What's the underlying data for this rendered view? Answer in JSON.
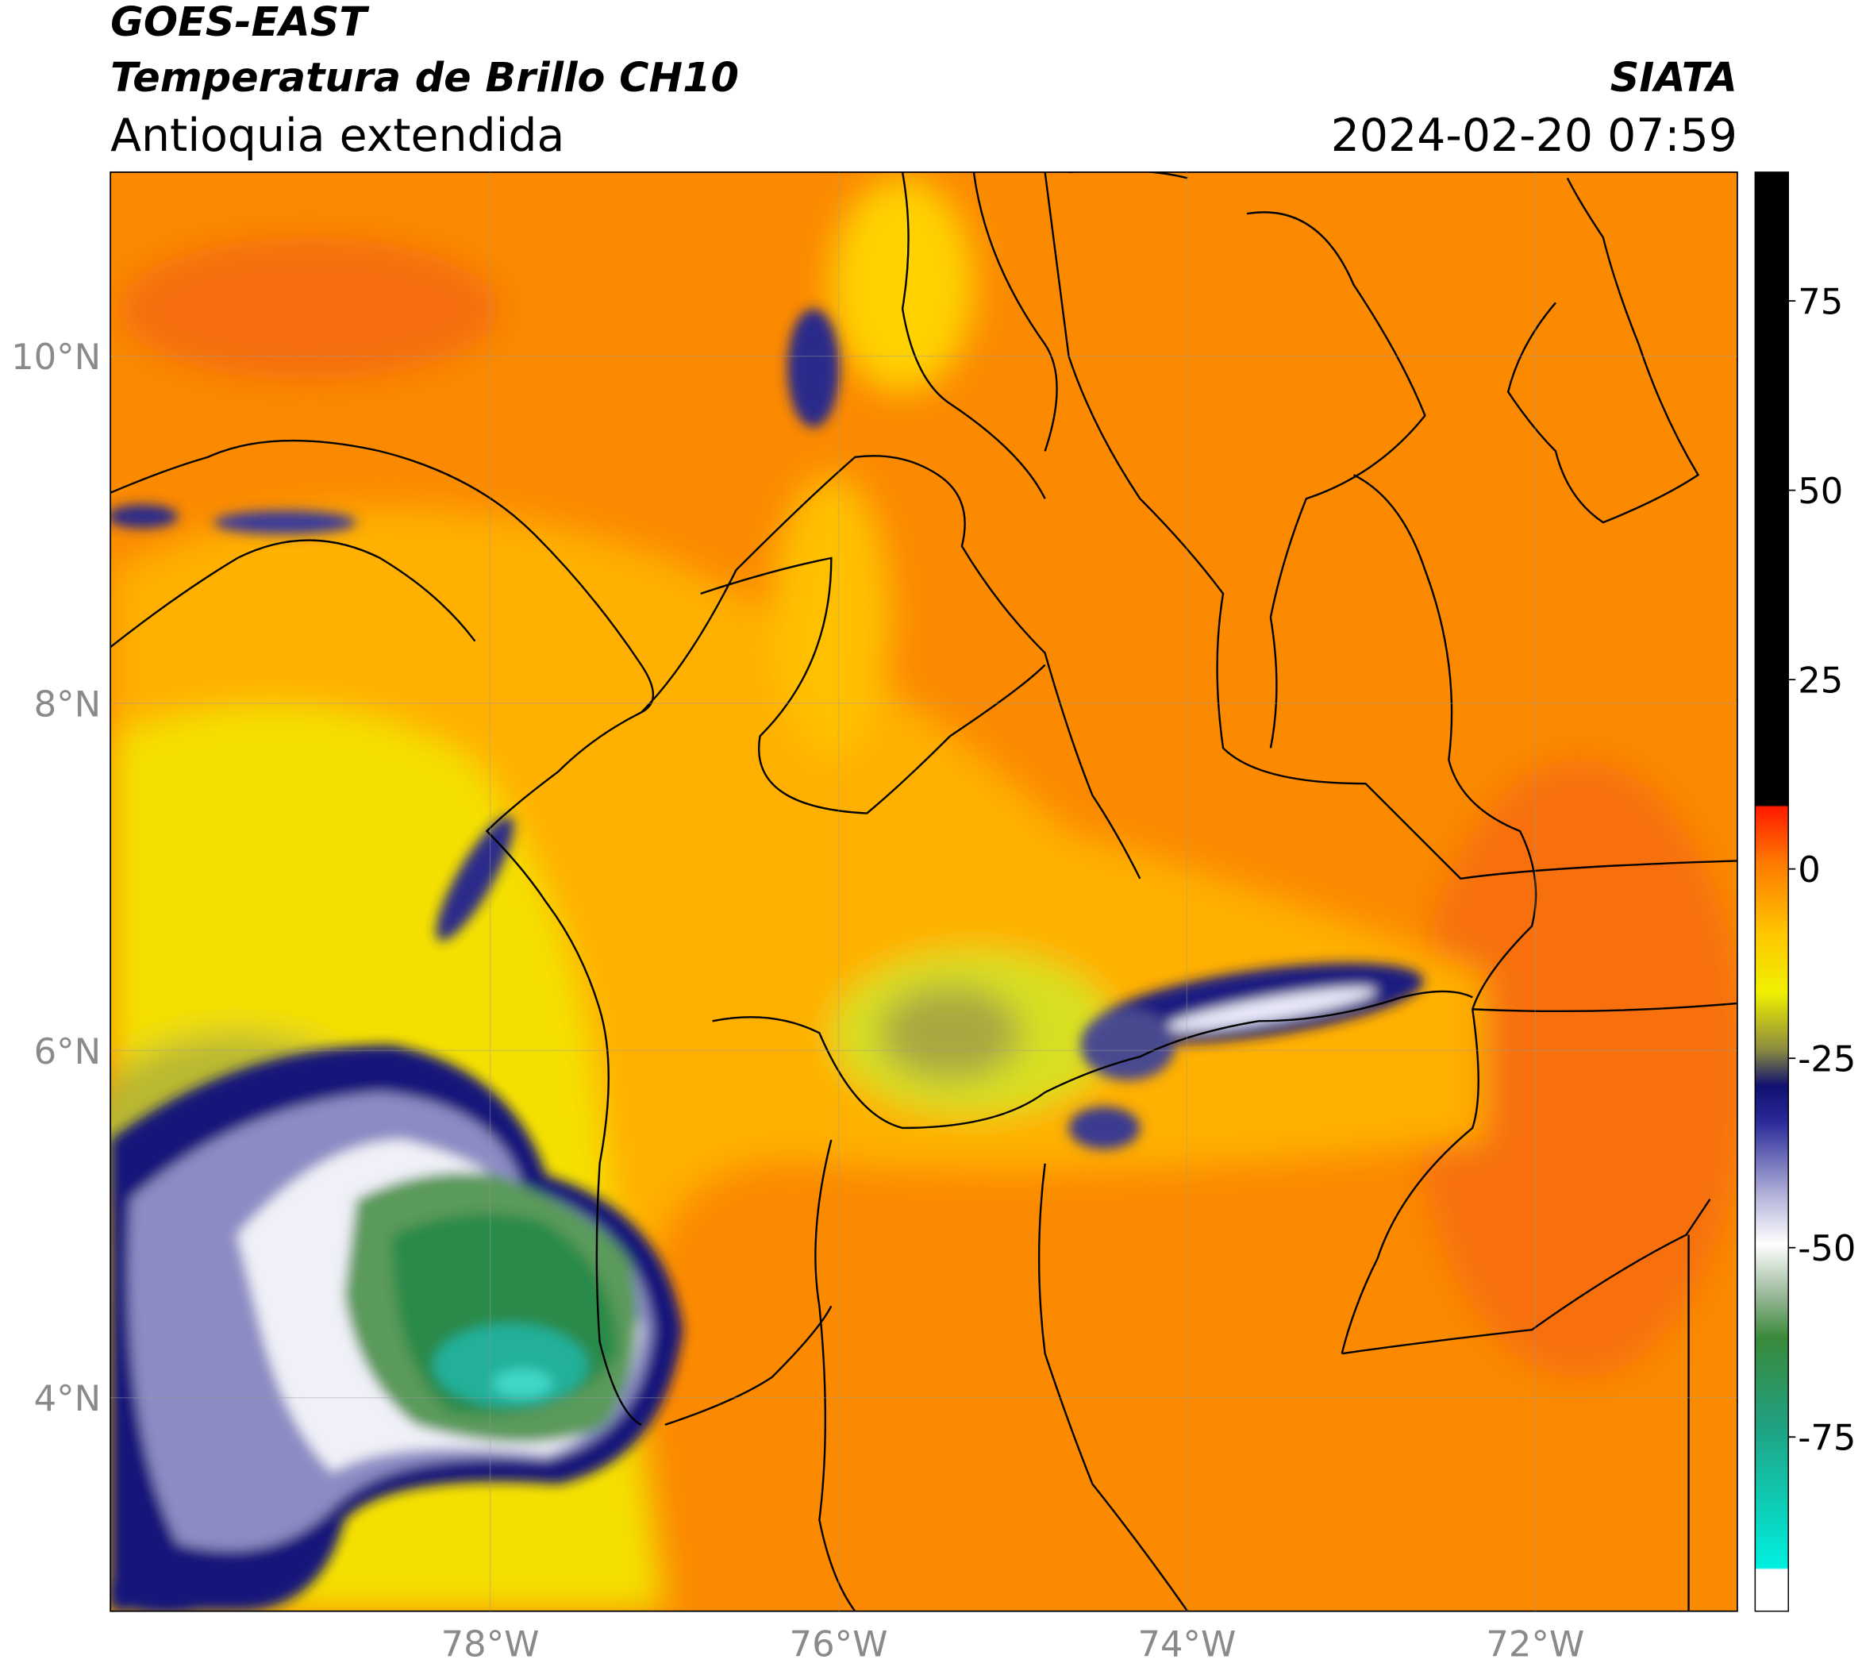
{
  "header": {
    "title": "GOES-EAST",
    "subtitle": "Temperatura de Brillo CH10",
    "region": "Antioquia extendida",
    "source": "SIATA",
    "datetime": "2024-02-20 07:59"
  },
  "map": {
    "xlim": [
      -80.18,
      -70.84
    ],
    "ylim": [
      2.77,
      11.06
    ],
    "xticks": [
      {
        "value": -78,
        "label": "78°W"
      },
      {
        "value": -76,
        "label": "76°W"
      },
      {
        "value": -74,
        "label": "74°W"
      },
      {
        "value": -72,
        "label": "72°W"
      }
    ],
    "yticks": [
      {
        "value": 4,
        "label": "4°N"
      },
      {
        "value": 6,
        "label": "6°N"
      },
      {
        "value": 8,
        "label": "8°N"
      },
      {
        "value": 10,
        "label": "10°N"
      }
    ],
    "grid": true
  },
  "colorbar": {
    "lim": [
      -98,
      92
    ],
    "ticks": [
      75,
      50,
      25,
      0,
      -25,
      -50,
      -75
    ]
  }
}
